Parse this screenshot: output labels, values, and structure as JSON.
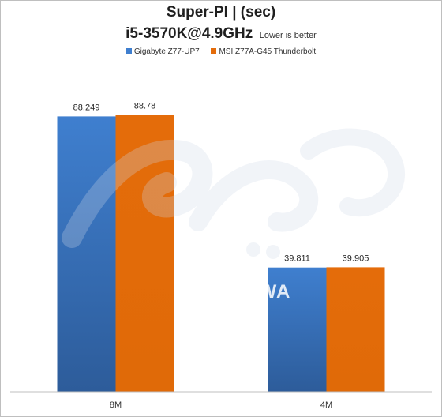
{
  "chart_data": {
    "type": "bar",
    "title": "Super-PI | (sec)",
    "subtitle": "i5-3570K@4.9GHz",
    "note": "Lower is better",
    "categories": [
      "8M",
      "4M"
    ],
    "series": [
      {
        "name": "Gigabyte Z77-UP7",
        "color": "#3f7fcf",
        "values": [
          88.249,
          39.811
        ],
        "labels": [
          "88.249",
          "39.811"
        ]
      },
      {
        "name": "MSI Z77A-G45 Thunderbolt",
        "color": "#e46c0a",
        "values": [
          88.78,
          39.905
        ],
        "labels": [
          "88.78",
          "39.905"
        ]
      }
    ],
    "ylim": [
      0,
      100
    ],
    "grid": false,
    "legend_position": "top"
  },
  "watermark": {
    "text": "BHARDWA"
  }
}
